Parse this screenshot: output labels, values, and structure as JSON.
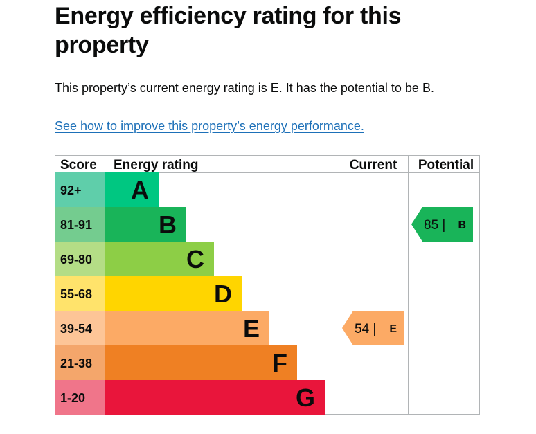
{
  "page": {
    "title": "Energy efficiency rating for this property",
    "summary": "This property’s current energy rating is E. It has the potential to be B.",
    "link_text": "See how to improve this property’s energy performance."
  },
  "chart_data": {
    "type": "bar",
    "headers": {
      "score": "Score",
      "rating": "Energy rating",
      "current": "Current",
      "potential": "Potential"
    },
    "bands": [
      {
        "letter": "A",
        "range": "92+",
        "color": "#00c781",
        "score_color": "#5fceaa"
      },
      {
        "letter": "B",
        "range": "81-91",
        "color": "#19b459",
        "score_color": "#74cc8f"
      },
      {
        "letter": "C",
        "range": "69-80",
        "color": "#8dce46",
        "score_color": "#b4dd86"
      },
      {
        "letter": "D",
        "range": "55-68",
        "color": "#ffd500",
        "score_color": "#ffe36b"
      },
      {
        "letter": "E",
        "range": "39-54",
        "color": "#fcaa65",
        "score_color": "#fdc597"
      },
      {
        "letter": "F",
        "range": "21-38",
        "color": "#ef8023",
        "score_color": "#f4a66b"
      },
      {
        "letter": "G",
        "range": "1-20",
        "color": "#e9153b",
        "score_color": "#f0758a"
      }
    ],
    "current": {
      "value": 54,
      "label": "54 |",
      "letter": "E",
      "color": "#fcaa65"
    },
    "potential": {
      "value": 85,
      "label": "85 |",
      "letter": "B",
      "color": "#19b459"
    }
  }
}
